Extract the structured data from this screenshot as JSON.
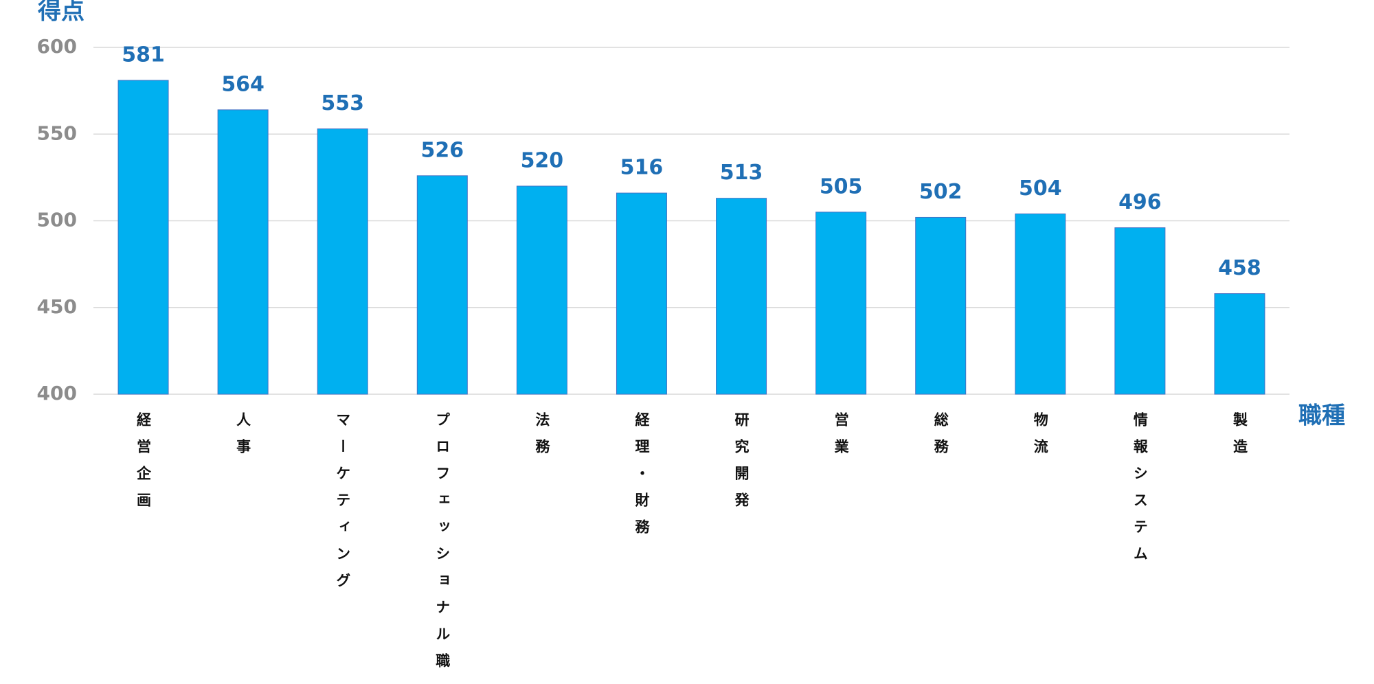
{
  "chart_data": {
    "type": "bar",
    "y_label": "得点",
    "x_label": "職種",
    "categories": [
      "経営企画",
      "人事",
      "マーケティング",
      "プロフェッショナル職",
      "法務",
      "経理・財務",
      "研究開発",
      "営業",
      "総務",
      "物流",
      "情報システム",
      "製造"
    ],
    "values": [
      581,
      564,
      553,
      526,
      520,
      516,
      513,
      505,
      502,
      504,
      496,
      458
    ],
    "color": "#00b0f0",
    "ylim": [
      400,
      600
    ],
    "yticks": [
      400,
      450,
      500,
      550,
      600
    ],
    "grid": true
  }
}
